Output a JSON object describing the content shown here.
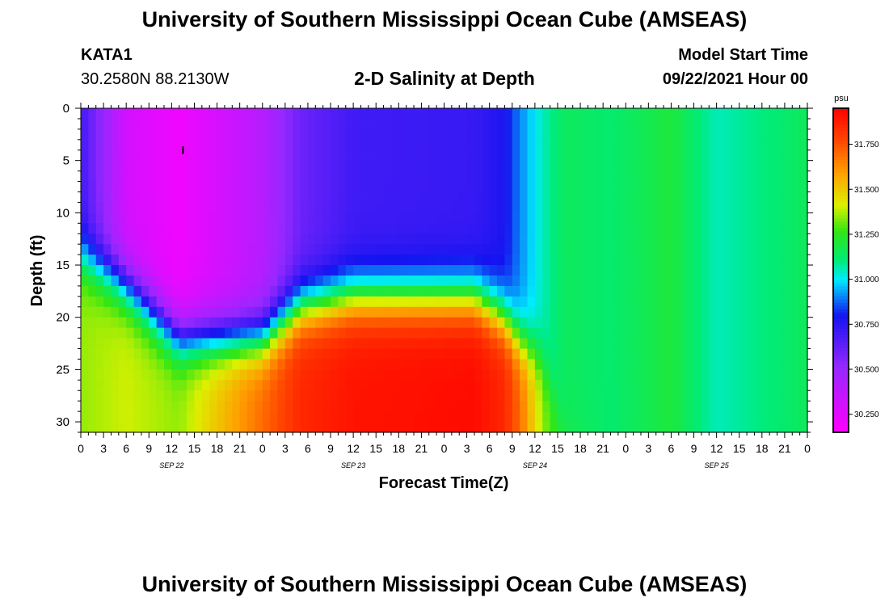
{
  "header": {
    "title": "University of Southern Mississippi Ocean Cube (AMSEAS)",
    "station_id": "KATA1",
    "coords": "30.2580N  88.2130W",
    "chart_title": "2-D Salinity at Depth",
    "model_start_label": "Model Start Time",
    "model_start_value": "09/22/2021 Hour 00"
  },
  "footer": {
    "title": "University of Southern Mississippi Ocean Cube (AMSEAS)"
  },
  "chart_data": {
    "type": "heatmap",
    "title": "2-D Salinity at Depth",
    "xlabel": "Forecast Time(Z)",
    "ylabel": "Depth (ft)",
    "x_range_hours": [
      0,
      96
    ],
    "ylim": [
      0,
      31
    ],
    "x_tick_labels": [
      "0",
      "3",
      "6",
      "9",
      "12",
      "15",
      "18",
      "21",
      "0",
      "3",
      "6",
      "9",
      "12",
      "15",
      "18",
      "21",
      "0",
      "3",
      "6",
      "9",
      "12",
      "15",
      "18",
      "21",
      "0",
      "3",
      "6",
      "9",
      "12",
      "15",
      "18",
      "21",
      "0"
    ],
    "date_labels": [
      {
        "hour": 12,
        "label": "SEP 22"
      },
      {
        "hour": 36,
        "label": "SEP 23"
      },
      {
        "hour": 60,
        "label": "SEP 24"
      },
      {
        "hour": 84,
        "label": "SEP 25"
      }
    ],
    "y_ticks": [
      0,
      5,
      10,
      15,
      20,
      25,
      30
    ],
    "colorbar": {
      "unit": "psu",
      "range": [
        30.15,
        31.95
      ],
      "tick_values": [
        30.25,
        30.5,
        30.75,
        31.0,
        31.25,
        31.5,
        31.75
      ],
      "tick_labels": [
        "30.250",
        "30.500",
        "30.750",
        "31.000",
        "31.250",
        "31.500",
        "31.750"
      ]
    },
    "marker": {
      "hour": 13.5,
      "depth_ft": 4,
      "label": "I"
    },
    "salinity_profiles": [
      {
        "hour": 0,
        "surface": 30.7,
        "halocline_ft": 14,
        "bottom": 31.35
      },
      {
        "hour": 6,
        "surface": 30.3,
        "halocline_ft": 17,
        "bottom": 31.4
      },
      {
        "hour": 13,
        "surface": 30.2,
        "halocline_ft": 22,
        "bottom": 31.35
      },
      {
        "hour": 24,
        "surface": 30.4,
        "halocline_ft": 22,
        "bottom": 31.7
      },
      {
        "hour": 29,
        "surface": 30.6,
        "halocline_ft": 19,
        "bottom": 31.85
      },
      {
        "hour": 36,
        "surface": 30.7,
        "halocline_ft": 18,
        "bottom": 31.9
      },
      {
        "hour": 52,
        "surface": 30.72,
        "halocline_ft": 18,
        "bottom": 31.92
      },
      {
        "hour": 56,
        "surface": 30.78,
        "halocline_ft": 20,
        "bottom": 31.85
      },
      {
        "hour": 58,
        "surface": 30.9,
        "halocline_ft": 22,
        "bottom": 31.7
      },
      {
        "hour": 61,
        "surface": 31.05,
        "halocline_ft": 24,
        "bottom": 31.35
      },
      {
        "hour": 64,
        "surface": 31.15,
        "halocline_ft": 31,
        "bottom": 31.2
      },
      {
        "hour": 70,
        "surface": 31.12,
        "halocline_ft": 31,
        "bottom": 31.12
      },
      {
        "hour": 78,
        "surface": 31.2,
        "halocline_ft": 31,
        "bottom": 31.2
      },
      {
        "hour": 84,
        "surface": 31.05,
        "halocline_ft": 31,
        "bottom": 31.05
      },
      {
        "hour": 90,
        "surface": 31.1,
        "halocline_ft": 31,
        "bottom": 31.1
      },
      {
        "hour": 96,
        "surface": 31.15,
        "halocline_ft": 31,
        "bottom": 31.15
      }
    ]
  }
}
